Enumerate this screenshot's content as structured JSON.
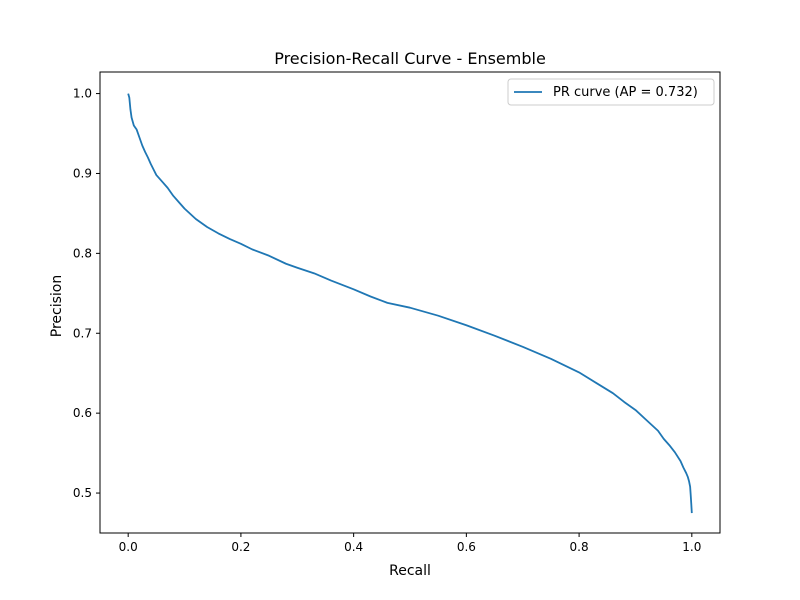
{
  "chart_data": {
    "type": "line",
    "title": "Precision-Recall Curve - Ensemble",
    "xlabel": "Recall",
    "ylabel": "Precision",
    "xlim": [
      -0.05,
      1.05
    ],
    "ylim": [
      0.45,
      1.027
    ],
    "xticks": [
      0.0,
      0.2,
      0.4,
      0.6,
      0.8,
      1.0
    ],
    "xtick_labels": [
      "0.0",
      "0.2",
      "0.4",
      "0.6",
      "0.8",
      "1.0"
    ],
    "yticks": [
      0.5,
      0.6,
      0.7,
      0.8,
      0.9,
      1.0
    ],
    "ytick_labels": [
      "0.5",
      "0.6",
      "0.7",
      "0.8",
      "0.9",
      "1.0"
    ],
    "grid": false,
    "legend_position": "upper-right",
    "series": [
      {
        "name": "PR curve (AP = 0.732)",
        "color": "#1f77b4",
        "x": [
          0.0,
          0.002,
          0.004,
          0.006,
          0.008,
          0.01,
          0.015,
          0.02,
          0.025,
          0.03,
          0.035,
          0.04,
          0.045,
          0.05,
          0.06,
          0.07,
          0.08,
          0.09,
          0.1,
          0.12,
          0.14,
          0.16,
          0.18,
          0.2,
          0.22,
          0.25,
          0.28,
          0.3,
          0.33,
          0.36,
          0.4,
          0.43,
          0.46,
          0.5,
          0.55,
          0.6,
          0.65,
          0.7,
          0.75,
          0.8,
          0.83,
          0.86,
          0.88,
          0.9,
          0.92,
          0.94,
          0.95,
          0.96,
          0.97,
          0.98,
          0.985,
          0.99,
          0.993,
          0.995,
          0.997,
          0.998,
          0.999,
          1.0
        ],
        "y": [
          1.0,
          0.995,
          0.98,
          0.97,
          0.965,
          0.96,
          0.955,
          0.945,
          0.935,
          0.927,
          0.92,
          0.912,
          0.905,
          0.898,
          0.89,
          0.882,
          0.872,
          0.864,
          0.856,
          0.843,
          0.833,
          0.825,
          0.818,
          0.812,
          0.805,
          0.797,
          0.787,
          0.782,
          0.775,
          0.766,
          0.755,
          0.746,
          0.738,
          0.732,
          0.722,
          0.71,
          0.697,
          0.683,
          0.668,
          0.651,
          0.638,
          0.625,
          0.614,
          0.604,
          0.591,
          0.578,
          0.568,
          0.56,
          0.551,
          0.54,
          0.532,
          0.525,
          0.52,
          0.515,
          0.508,
          0.498,
          0.487,
          0.475
        ]
      }
    ]
  }
}
